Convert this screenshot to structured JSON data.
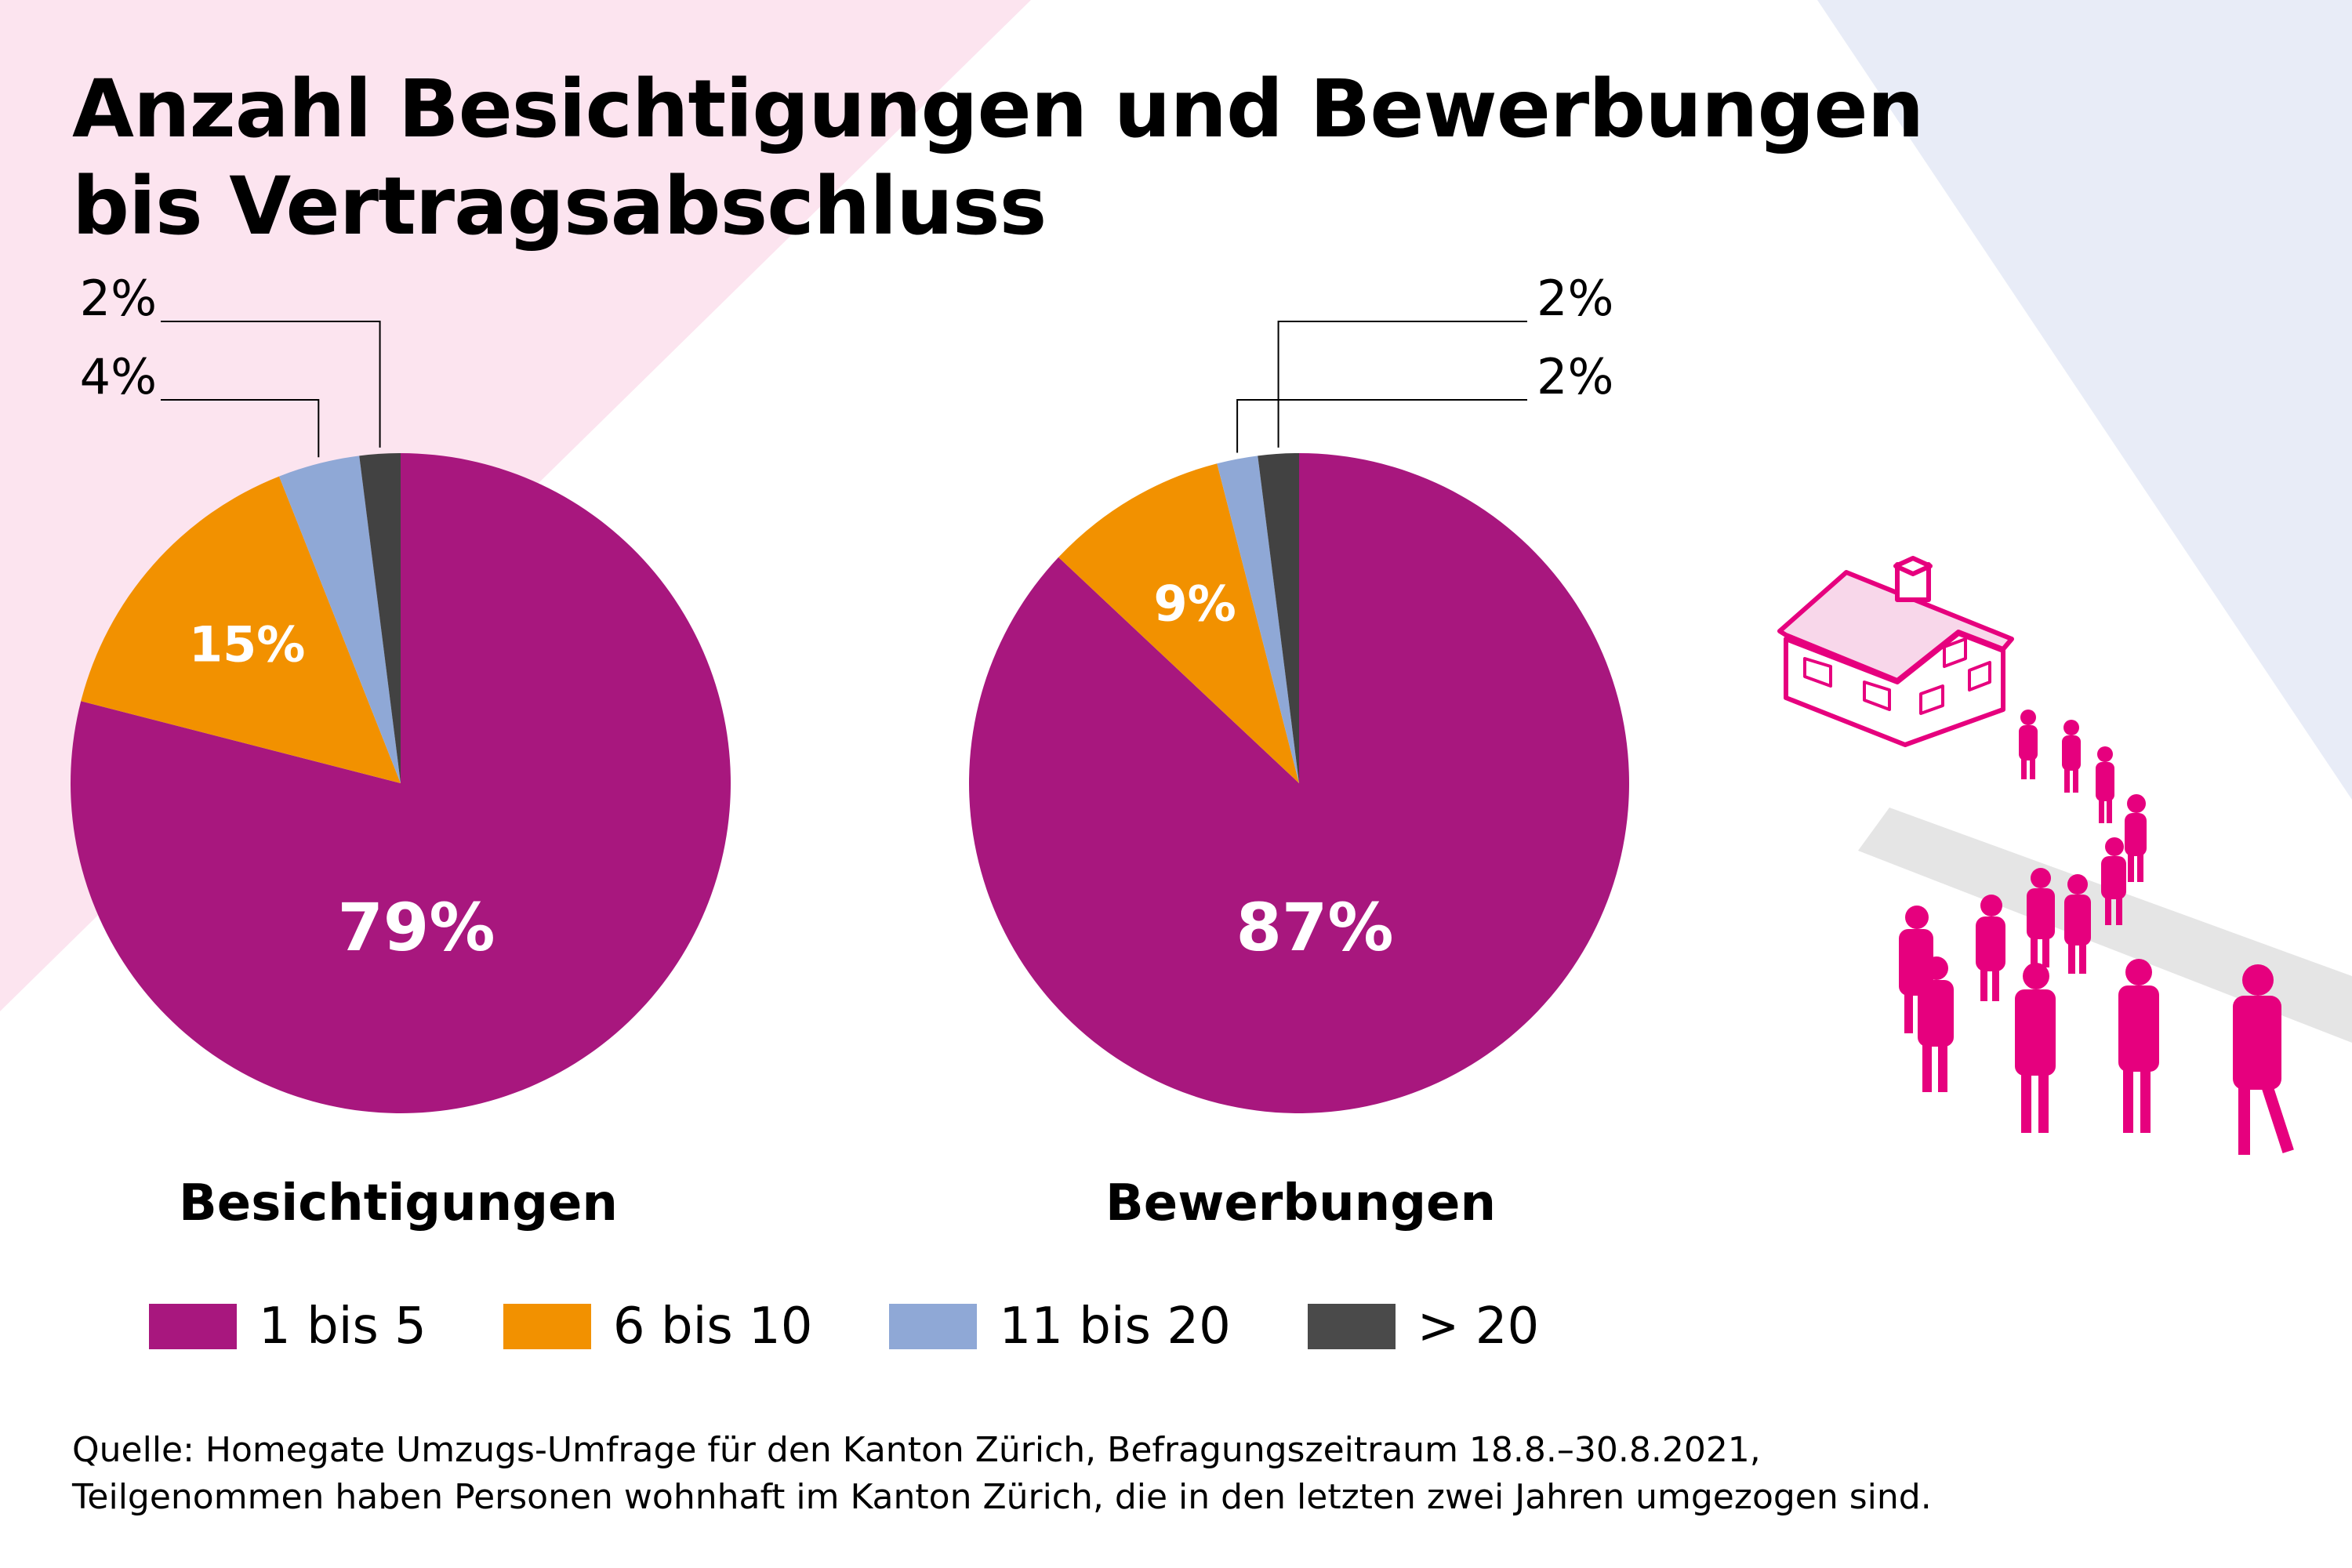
{
  "title_lines": [
    "Anzahl Besichtigungen und Bewerbungen",
    "bis Vertragsabschluss"
  ],
  "colors": {
    "bg_pink": "#fce4ef",
    "bg_blue": "#e8ecf7",
    "accent_magenta": "#e6007e",
    "path_gray": "#e5e5e5"
  },
  "legend": [
    {
      "label": "1 bis 5",
      "color": "#a8177e"
    },
    {
      "label": "6 bis 10",
      "color": "#f29100"
    },
    {
      "label": "11 bis 20",
      "color": "#8fa8d6"
    },
    {
      "label": "> 20",
      "color": "#424242"
    }
  ],
  "footer": {
    "line1": "Quelle: Homegate Umzugs-Umfrage für den Kanton Zürich, Befragungszeitraum 18.8.–30.8.2021,",
    "line2": "Teilgenommen haben Personen wohnhaft im Kanton Zürich, die in den letzten zwei Jahren umgezogen sind."
  },
  "chart_data": [
    {
      "type": "pie",
      "title": "Besichtigungen",
      "categories": [
        "1 bis 5",
        "6 bis 10",
        "11 bis 20",
        "> 20"
      ],
      "values": [
        79,
        15,
        4,
        2
      ],
      "labels": [
        "79%",
        "15%",
        "4%",
        "2%"
      ],
      "unit": "%"
    },
    {
      "type": "pie",
      "title": "Bewerbungen",
      "categories": [
        "1 bis 5",
        "6 bis 10",
        "11 bis 20",
        "> 20"
      ],
      "values": [
        87,
        9,
        2,
        2
      ],
      "labels": [
        "87%",
        "9%",
        "2%",
        "2%"
      ],
      "unit": "%"
    }
  ]
}
